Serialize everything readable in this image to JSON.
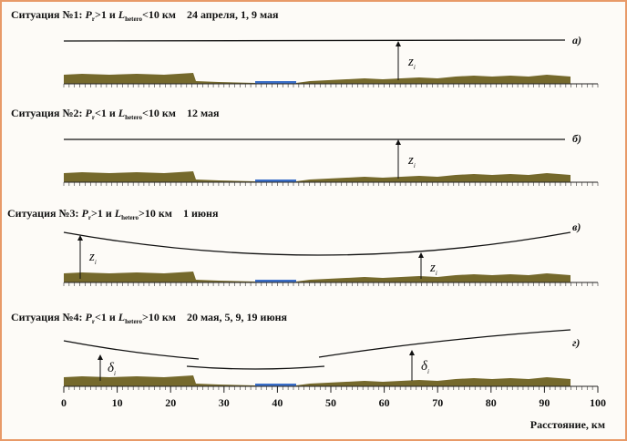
{
  "panels": [
    {
      "title": {
        "label": "Ситуация №1:",
        "p": "P",
        "p_sub": "r",
        "cond1": ">1 и",
        "l": "L",
        "l_sub": "hetero",
        "cond2": "<10 км"
      },
      "dates": "24 апреля, 1, 9 мая",
      "letter": "а)",
      "marker": {
        "symbol": "z",
        "sub": "i"
      }
    },
    {
      "title": {
        "label": "Ситуация №2:",
        "p": "P",
        "p_sub": "r",
        "cond1": "<1 и",
        "l": "L",
        "l_sub": "hetero",
        "cond2": "<10 км"
      },
      "dates": "12 мая",
      "letter": "б)",
      "marker": {
        "symbol": "z",
        "sub": "i"
      }
    },
    {
      "title": {
        "label": "Ситуация №3:",
        "p": "P",
        "p_sub": "r",
        "cond1": ">1 и",
        "l": "L",
        "l_sub": "hetero",
        "cond2": ">10 км"
      },
      "dates": "1 июня",
      "letter": "в)",
      "marker": {
        "symbol": "z",
        "sub": "i"
      }
    },
    {
      "title": {
        "label": "Ситуация №4:",
        "p": "P",
        "p_sub": "r",
        "cond1": "<1 и",
        "l": "L",
        "l_sub": "hetero",
        "cond2": ">10 км"
      },
      "dates": "20 мая, 5, 9, 19 июня",
      "letter": "г)",
      "marker": {
        "symbol": "δ",
        "sub": "i"
      }
    }
  ],
  "axis": {
    "ticks": [
      0,
      10,
      20,
      30,
      40,
      50,
      60,
      70,
      80,
      90,
      100
    ],
    "label": "Расстояние, км"
  }
}
